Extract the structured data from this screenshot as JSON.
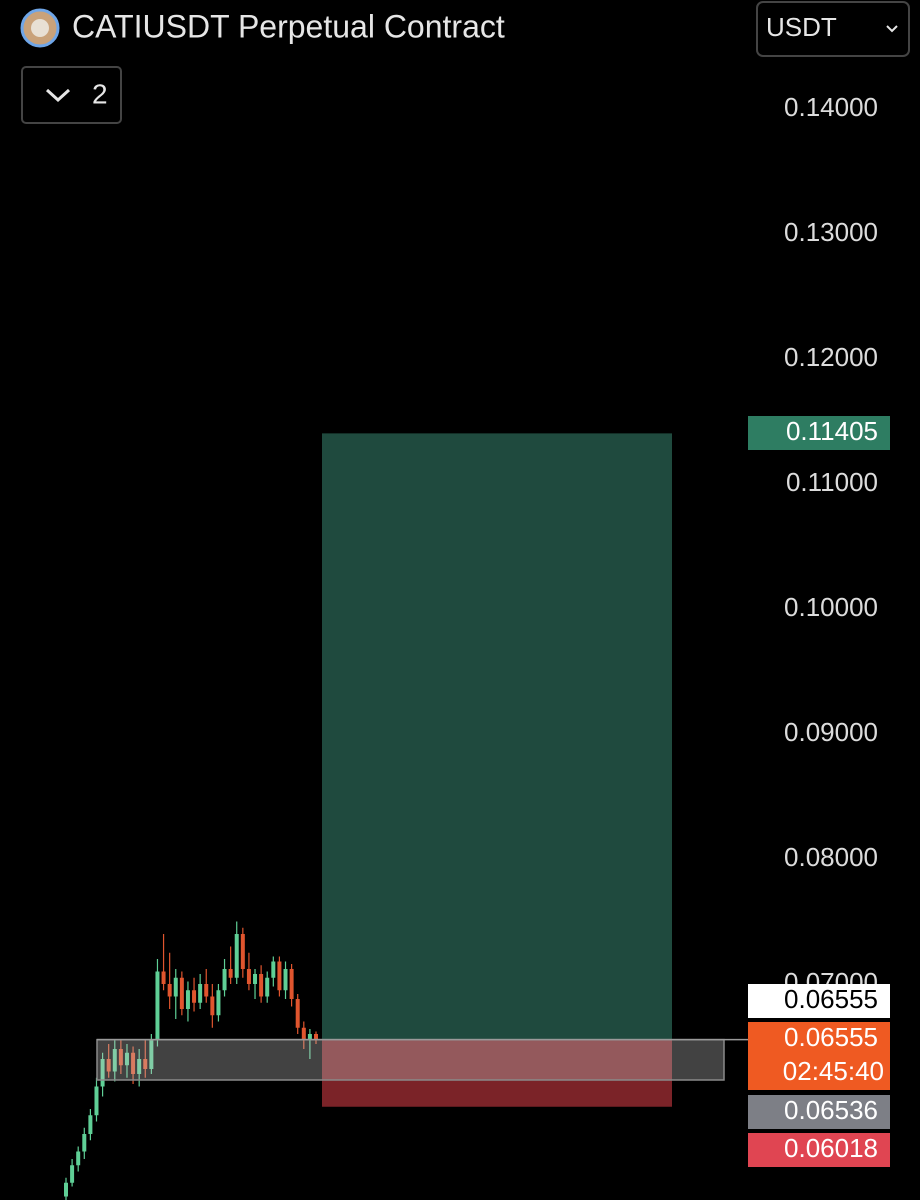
{
  "chart_data": {
    "type": "candlestick",
    "title": "CATIUSDT Perpetual Contract",
    "indicator_count": "2",
    "currency": "USDT",
    "ylim": [
      0.05272,
      0.14872
    ],
    "yticks": [
      {
        "value": 0.14,
        "label": "0.14000"
      },
      {
        "value": 0.13,
        "label": "0.13000"
      },
      {
        "value": 0.12,
        "label": "0.12000"
      },
      {
        "value": 0.11,
        "label": "0.11000"
      },
      {
        "value": 0.1,
        "label": "0.10000"
      },
      {
        "value": 0.09,
        "label": "0.09000"
      },
      {
        "value": 0.08,
        "label": "0.08000"
      },
      {
        "value": 0.07,
        "label": "0.07000"
      }
    ],
    "up_color": "#5fcf96",
    "down_color": "#e0552e",
    "open": [
      0.053,
      0.0541,
      0.0555,
      0.0566,
      0.058,
      0.0595,
      0.0618,
      0.064,
      0.063,
      0.0648,
      0.0635,
      0.0645,
      0.0628,
      0.064,
      0.0632,
      0.0655,
      0.071,
      0.07,
      0.069,
      0.0705,
      0.068,
      0.0695,
      0.0685,
      0.07,
      0.069,
      0.0675,
      0.0695,
      0.0712,
      0.0705,
      0.074,
      0.0712,
      0.07,
      0.0708,
      0.069,
      0.0705,
      0.0718,
      0.0695,
      0.0712,
      0.0688,
      0.0665,
      0.0655,
      0.066
    ],
    "high": [
      0.0545,
      0.056,
      0.057,
      0.0585,
      0.06,
      0.0625,
      0.0645,
      0.0652,
      0.0655,
      0.0655,
      0.0652,
      0.065,
      0.0648,
      0.0655,
      0.066,
      0.072,
      0.074,
      0.0725,
      0.0712,
      0.071,
      0.0702,
      0.0705,
      0.0708,
      0.0712,
      0.07,
      0.07,
      0.072,
      0.073,
      0.075,
      0.0745,
      0.0725,
      0.0712,
      0.0715,
      0.071,
      0.0722,
      0.0722,
      0.0718,
      0.0716,
      0.0692,
      0.067,
      0.0664,
      0.0662
    ],
    "low": [
      0.0527,
      0.0538,
      0.055,
      0.056,
      0.0575,
      0.059,
      0.061,
      0.0625,
      0.0622,
      0.0628,
      0.0625,
      0.062,
      0.0618,
      0.0625,
      0.0628,
      0.065,
      0.0695,
      0.068,
      0.0672,
      0.0675,
      0.067,
      0.0678,
      0.068,
      0.0685,
      0.0665,
      0.067,
      0.069,
      0.07,
      0.07,
      0.0705,
      0.0695,
      0.0688,
      0.0685,
      0.0685,
      0.0698,
      0.069,
      0.0688,
      0.0682,
      0.066,
      0.0648,
      0.064,
      0.0652
    ],
    "close": [
      0.0541,
      0.0555,
      0.0566,
      0.058,
      0.0595,
      0.0618,
      0.064,
      0.063,
      0.0648,
      0.0635,
      0.0645,
      0.0628,
      0.064,
      0.0632,
      0.0655,
      0.071,
      0.07,
      0.069,
      0.0705,
      0.068,
      0.0695,
      0.0685,
      0.07,
      0.069,
      0.0675,
      0.0695,
      0.0712,
      0.0705,
      0.074,
      0.0712,
      0.07,
      0.0708,
      0.069,
      0.0705,
      0.0718,
      0.0695,
      0.0712,
      0.0688,
      0.0665,
      0.0655,
      0.066,
      0.0655
    ],
    "zone": {
      "low": 0.06232,
      "high": 0.06555,
      "color": "#c8c8c8"
    },
    "position": {
      "entry": 0.06555,
      "target": 0.11405,
      "stop": 0.06018,
      "profit_color": "#1f4a3e",
      "loss_color": "#7b2328"
    },
    "price_tags": [
      {
        "value": 0.11405,
        "label": "0.11405",
        "color": "#2e7d62",
        "text_color": "#ffffff"
      },
      {
        "value": 0.06555,
        "label": "0.06555",
        "color": "#ffffff",
        "text_color": "#000000"
      },
      {
        "value": 0.06555,
        "label": "0.06555",
        "color": "#ef5a22",
        "text_color": "#ffffff",
        "countdown": "02:45:40"
      },
      {
        "value": 0.06536,
        "label": "0.06536",
        "color": "#7d7f86",
        "text_color": "#ffffff"
      },
      {
        "value": 0.06018,
        "label": "0.06018",
        "color": "#e04552",
        "text_color": "#ffffff"
      }
    ]
  }
}
